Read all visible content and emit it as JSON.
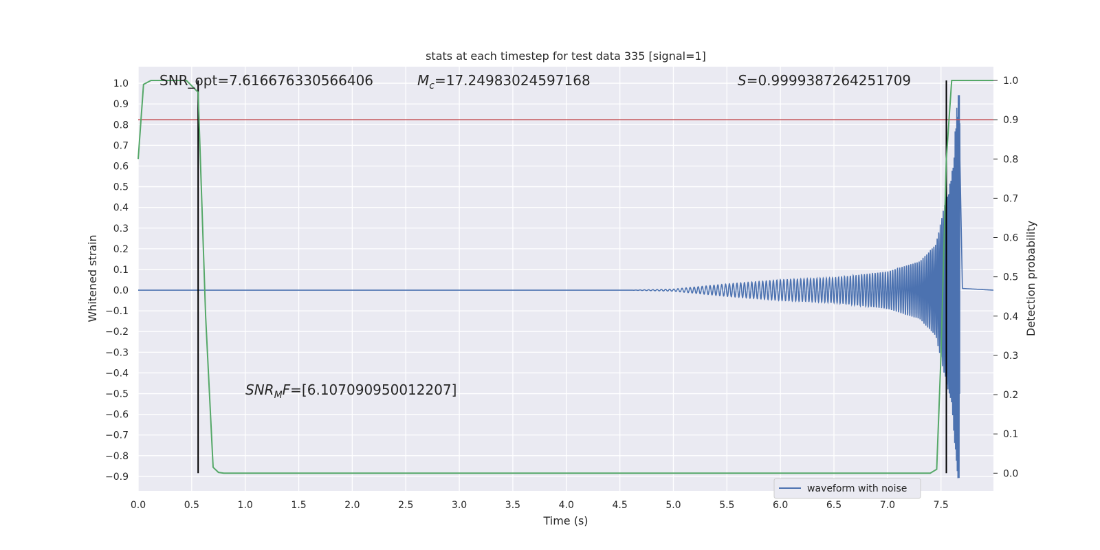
{
  "chart_data": {
    "type": "line",
    "title": "stats at each timestep for test data 335 [signal=1]",
    "xlabel": "Time (s)",
    "ylabel_left": "Whitened strain",
    "ylabel_right": "Detection probability",
    "xlim": [
      0,
      7.99
    ],
    "ylim_left": [
      -0.97,
      1.08
    ],
    "ylim_right": [
      -0.045,
      1.035
    ],
    "x_ticks": [
      "0.0",
      "0.5",
      "1.0",
      "1.5",
      "2.0",
      "2.5",
      "3.0",
      "3.5",
      "4.0",
      "4.5",
      "5.0",
      "5.5",
      "6.0",
      "6.5",
      "7.0",
      "7.5"
    ],
    "y_ticks_left": [
      "1.0",
      "0.9",
      "0.8",
      "0.7",
      "0.6",
      "0.5",
      "0.4",
      "0.3",
      "0.2",
      "0.1",
      "0.0",
      "−0.1",
      "−0.2",
      "−0.3",
      "−0.4",
      "−0.5",
      "−0.6",
      "−0.7",
      "−0.8",
      "−0.9"
    ],
    "y_ticks_right": [
      "1.0",
      "0.9",
      "0.8",
      "0.7",
      "0.6",
      "0.5",
      "0.4",
      "0.3",
      "0.2",
      "0.1",
      "0.0"
    ],
    "grid": true,
    "legend": {
      "placement": "lower-right",
      "entries": [
        "waveform with noise"
      ]
    },
    "annotations": {
      "snr_opt": "SNR_opt=7.616676330566406",
      "mc_sym": "M",
      "mc_sub": "c",
      "mc_val": "=17.24983024597168",
      "s_sym": "S",
      "s_val": "=0.9999387264251709",
      "snrmf_a": "SNR",
      "snrmf_sub": "M",
      "snrmf_b": "F",
      "snrmf_val": "=[6.107090950012207]"
    },
    "colors": {
      "background": "#eaeaf2",
      "grid": "#ffffff",
      "waveform": "#4c72b0",
      "probability": "#55a868",
      "threshold": "#c44e52",
      "markers": "#000000",
      "text": "#262626"
    },
    "series": [
      {
        "name": "waveform with noise",
        "axis": "left",
        "envelope": {
          "t": [
            0.0,
            4.6,
            5.0,
            5.5,
            6.0,
            6.5,
            7.0,
            7.3,
            7.45,
            7.55,
            7.6,
            7.65,
            7.67,
            7.7,
            7.99
          ],
          "amp": [
            0.0,
            0.0,
            0.005,
            0.03,
            0.05,
            0.06,
            0.09,
            0.14,
            0.22,
            0.45,
            0.55,
            0.9,
            1.0,
            0.01,
            0.0
          ]
        }
      },
      {
        "axis": "right",
        "x": [
          0.0,
          0.05,
          0.12,
          0.45,
          0.56,
          0.63,
          0.7,
          0.75,
          0.8,
          7.4,
          7.46,
          7.5,
          7.55,
          7.6,
          7.99
        ],
        "y": [
          0.8,
          0.99,
          1.0,
          1.0,
          0.97,
          0.4,
          0.015,
          0.002,
          0.0,
          0.0,
          0.01,
          0.3,
          0.8,
          1.0,
          1.0
        ]
      }
    ],
    "threshold_right": 0.9,
    "vertical_markers": [
      0.56,
      7.55
    ]
  }
}
